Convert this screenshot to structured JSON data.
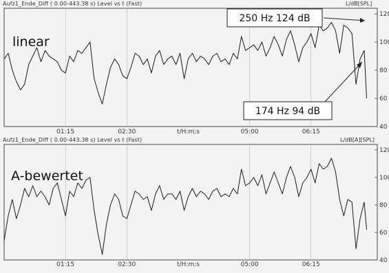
{
  "chart_data": [
    {
      "type": "line",
      "header": "Aufz1_Ende_Diff ( 0.00-443.38 s) Level vs t (Fast)",
      "unit_label": "L/dB[SPL]",
      "label": "linear",
      "xlabel": "t/H:m:s",
      "x_ticks": [
        "01:15",
        "02:30",
        "05:00",
        "06:15"
      ],
      "x_tick_seconds": [
        75,
        150,
        300,
        375
      ],
      "x_range": [
        0,
        443.38
      ],
      "ylim": [
        40,
        124
      ],
      "y_ticks": [
        40,
        60,
        80,
        100,
        120
      ],
      "annotations": [
        "250 Hz 124 dB",
        "174 Hz 94 dB"
      ],
      "x": [
        0,
        5,
        10,
        15,
        20,
        25,
        30,
        35,
        40,
        45,
        50,
        55,
        60,
        65,
        70,
        75,
        80,
        85,
        90,
        95,
        100,
        105,
        110,
        115,
        120,
        125,
        130,
        135,
        140,
        145,
        150,
        155,
        160,
        165,
        170,
        175,
        180,
        185,
        190,
        195,
        200,
        205,
        210,
        215,
        220,
        225,
        230,
        235,
        240,
        245,
        250,
        255,
        260,
        265,
        270,
        275,
        280,
        285,
        290,
        295,
        300,
        305,
        310,
        315,
        320,
        325,
        330,
        335,
        340,
        345,
        350,
        355,
        360,
        365,
        370,
        375,
        380,
        385,
        390,
        395,
        400,
        405,
        410,
        415,
        420,
        425,
        430,
        435,
        440,
        443
      ],
      "y": [
        88,
        92,
        80,
        72,
        66,
        70,
        84,
        90,
        96,
        86,
        94,
        90,
        88,
        86,
        80,
        78,
        90,
        86,
        94,
        92,
        96,
        100,
        74,
        64,
        56,
        70,
        82,
        88,
        84,
        76,
        74,
        82,
        92,
        90,
        84,
        88,
        78,
        90,
        94,
        84,
        88,
        90,
        84,
        92,
        74,
        88,
        92,
        86,
        90,
        88,
        84,
        90,
        92,
        86,
        88,
        84,
        92,
        88,
        104,
        94,
        96,
        98,
        94,
        100,
        90,
        96,
        104,
        98,
        90,
        102,
        108,
        98,
        86,
        96,
        100,
        106,
        96,
        112,
        108,
        110,
        114,
        108,
        92,
        112,
        110,
        106,
        70,
        88,
        94,
        60
      ]
    },
    {
      "type": "line",
      "header": "Aufz1_Ende_Diff ( 0.00-443.38 s) Level vs t (Fast)",
      "unit_label": "L/dB[A][SPL]",
      "label": "A-bewertet",
      "xlabel": "t/H:m:s",
      "x_ticks": [
        "01:15",
        "02:30",
        "05:00",
        "06:15"
      ],
      "x_tick_seconds": [
        75,
        150,
        300,
        375
      ],
      "x_range": [
        0,
        443.38
      ],
      "ylim": [
        40,
        124
      ],
      "y_ticks": [
        40,
        60,
        80,
        100,
        120
      ],
      "x": [
        0,
        5,
        10,
        15,
        20,
        25,
        30,
        35,
        40,
        45,
        50,
        55,
        60,
        65,
        70,
        75,
        80,
        85,
        90,
        95,
        100,
        105,
        110,
        115,
        120,
        125,
        130,
        135,
        140,
        145,
        150,
        155,
        160,
        165,
        170,
        175,
        180,
        185,
        190,
        195,
        200,
        205,
        210,
        215,
        220,
        225,
        230,
        235,
        240,
        245,
        250,
        255,
        260,
        265,
        270,
        275,
        280,
        285,
        290,
        295,
        300,
        305,
        310,
        315,
        320,
        325,
        330,
        335,
        340,
        345,
        350,
        355,
        360,
        365,
        370,
        375,
        380,
        385,
        390,
        395,
        400,
        405,
        410,
        415,
        420,
        425,
        430,
        435,
        440,
        443
      ],
      "y": [
        54,
        72,
        84,
        70,
        80,
        92,
        86,
        94,
        86,
        90,
        86,
        80,
        92,
        96,
        84,
        72,
        90,
        86,
        96,
        92,
        98,
        100,
        76,
        58,
        44,
        66,
        80,
        88,
        84,
        72,
        70,
        80,
        90,
        88,
        84,
        86,
        76,
        88,
        94,
        84,
        88,
        88,
        84,
        90,
        76,
        86,
        92,
        86,
        90,
        88,
        84,
        90,
        92,
        86,
        88,
        86,
        92,
        88,
        106,
        94,
        96,
        100,
        94,
        102,
        88,
        96,
        104,
        96,
        88,
        100,
        108,
        100,
        86,
        96,
        100,
        106,
        96,
        110,
        106,
        108,
        114,
        104,
        84,
        72,
        84,
        82,
        48,
        70,
        82,
        62
      ]
    }
  ]
}
